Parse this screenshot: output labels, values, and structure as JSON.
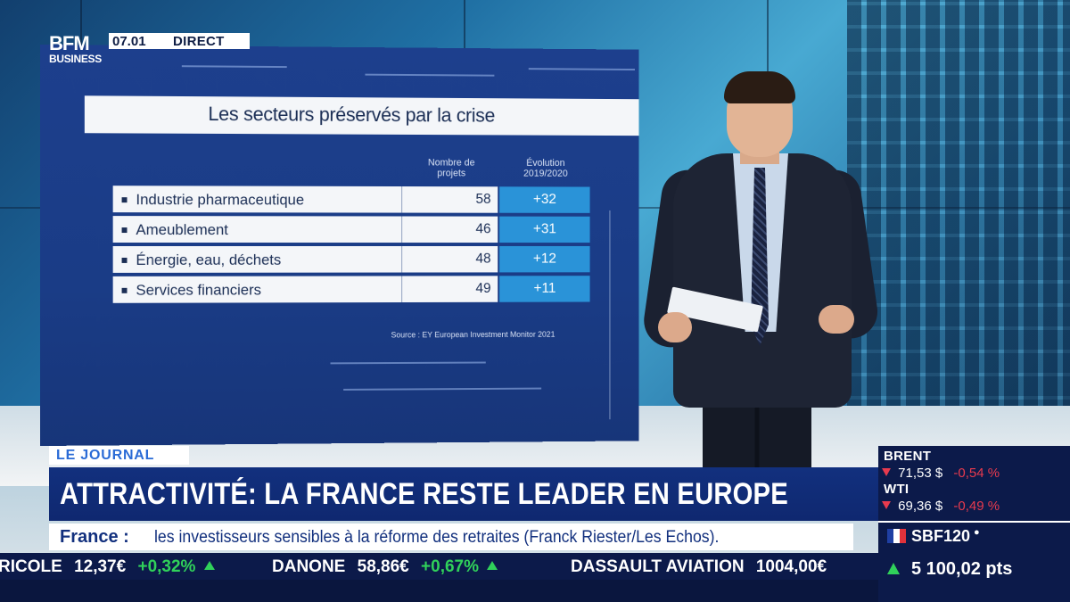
{
  "channel": {
    "logo_line1": "BFM",
    "logo_line2": "BUSINESS",
    "time": "07.01",
    "live_label": "DIRECT"
  },
  "panel": {
    "title": "Les secteurs préservés par la crise",
    "col_count": "Nombre de projets",
    "col_evolution": "Évolution 2019/2020",
    "rows": [
      {
        "label": "Industrie pharmaceutique",
        "count": "58",
        "evolution": "+32"
      },
      {
        "label": "Ameublement",
        "count": "46",
        "evolution": "+31"
      },
      {
        "label": "Énergie, eau, déchets",
        "count": "48",
        "evolution": "+12"
      },
      {
        "label": "Services financiers",
        "count": "49",
        "evolution": "+11"
      }
    ],
    "source": "Source : EY European Investment Monitor 2021"
  },
  "lower_third": {
    "kicker": "LE JOURNAL",
    "headline": "ATTRACTIVITÉ: LA FRANCE RESTE LEADER EN EUROPE",
    "sub_lead": "France :",
    "sub_text": "les investisseurs sensibles à la réforme des retraites (Franck Riester/Les Echos)."
  },
  "ticker": [
    {
      "name": "RICOLE",
      "price": "12,37€",
      "change": "+0,32%"
    },
    {
      "name": "DANONE",
      "price": "58,86€",
      "change": "+0,67%"
    },
    {
      "name": "DASSAULT AVIATION",
      "price": "1004,00€",
      "change": ""
    }
  ],
  "market": {
    "brent_label": "BRENT",
    "brent_price": "71,53 $",
    "brent_change": "-0,54 %",
    "wti_label": "WTI",
    "wti_price": "69,36 $",
    "wti_change": "-0,49 %",
    "index_name": "SBF120",
    "index_value": "5 100,02 pts"
  },
  "colors": {
    "brand_blue": "#12307e",
    "accent_blue": "#2a93d8",
    "up_green": "#30d15a",
    "down_red": "#e83a4e",
    "flag_blue": "#1f3fa3",
    "flag_white": "#ffffff",
    "flag_red": "#e1323b"
  },
  "icons": {
    "market_up": "triangle-up-icon",
    "market_down": "triangle-down-icon",
    "france_flag": "france-flag-icon"
  }
}
